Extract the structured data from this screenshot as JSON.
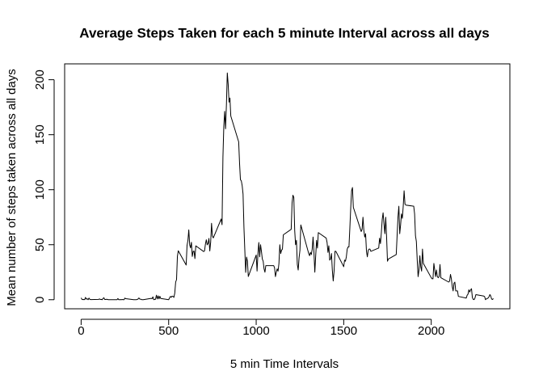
{
  "chart_data": {
    "type": "line",
    "title": "Average Steps Taken for each 5 minute Interval across all days",
    "x_label": "5 min Time Intervals",
    "y_label": "Mean number of steps taken across all days",
    "color": "#000000",
    "xlim": [
      -94.2,
      2449.2
    ],
    "ylim": [
      -8.25,
      214.42
    ],
    "xticks": [
      0,
      500,
      1000,
      1500,
      2000
    ],
    "yticks": [
      0,
      50,
      100,
      150,
      200
    ],
    "grid": false,
    "x": [
      0,
      5,
      10,
      15,
      20,
      25,
      30,
      35,
      40,
      45,
      50,
      55,
      100,
      105,
      110,
      115,
      120,
      125,
      130,
      135,
      140,
      145,
      150,
      155,
      200,
      205,
      210,
      215,
      220,
      225,
      230,
      235,
      240,
      245,
      250,
      255,
      300,
      305,
      310,
      315,
      320,
      325,
      330,
      335,
      340,
      345,
      350,
      355,
      400,
      405,
      410,
      415,
      420,
      425,
      430,
      435,
      440,
      445,
      450,
      455,
      500,
      505,
      510,
      515,
      520,
      525,
      530,
      535,
      540,
      545,
      550,
      555,
      600,
      605,
      610,
      615,
      620,
      625,
      630,
      635,
      640,
      645,
      650,
      655,
      700,
      705,
      710,
      715,
      720,
      725,
      730,
      735,
      740,
      745,
      750,
      755,
      800,
      805,
      810,
      815,
      820,
      825,
      830,
      835,
      840,
      845,
      850,
      855,
      900,
      905,
      910,
      915,
      920,
      925,
      930,
      935,
      940,
      945,
      950,
      955,
      1000,
      1005,
      1010,
      1015,
      1020,
      1025,
      1030,
      1035,
      1040,
      1045,
      1050,
      1055,
      1100,
      1105,
      1110,
      1115,
      1120,
      1125,
      1130,
      1135,
      1140,
      1145,
      1150,
      1155,
      1200,
      1205,
      1210,
      1215,
      1220,
      1225,
      1230,
      1235,
      1240,
      1245,
      1250,
      1255,
      1300,
      1305,
      1310,
      1315,
      1320,
      1325,
      1330,
      1335,
      1340,
      1345,
      1350,
      1355,
      1400,
      1405,
      1410,
      1415,
      1420,
      1425,
      1430,
      1435,
      1440,
      1445,
      1450,
      1455,
      1500,
      1505,
      1510,
      1515,
      1520,
      1525,
      1530,
      1535,
      1540,
      1545,
      1550,
      1555,
      1600,
      1605,
      1610,
      1615,
      1620,
      1625,
      1630,
      1635,
      1640,
      1645,
      1650,
      1655,
      1700,
      1705,
      1710,
      1715,
      1720,
      1725,
      1730,
      1735,
      1740,
      1745,
      1750,
      1755,
      1800,
      1805,
      1810,
      1815,
      1820,
      1825,
      1830,
      1835,
      1840,
      1845,
      1850,
      1855,
      1900,
      1905,
      1910,
      1915,
      1920,
      1925,
      1930,
      1935,
      1940,
      1945,
      1950,
      1955,
      2000,
      2005,
      2010,
      2015,
      2020,
      2025,
      2030,
      2035,
      2040,
      2045,
      2050,
      2055,
      2100,
      2105,
      2110,
      2115,
      2120,
      2125,
      2130,
      2135,
      2140,
      2145,
      2150,
      2155,
      2200,
      2205,
      2210,
      2215,
      2220,
      2225,
      2230,
      2235,
      2240,
      2245,
      2250,
      2255,
      2300,
      2305,
      2310,
      2315,
      2320,
      2325,
      2330,
      2335,
      2340,
      2345,
      2350,
      2355
    ],
    "values": [
      1.7,
      0.3,
      0.1,
      0.2,
      0.1,
      2.1,
      0.5,
      0.9,
      0,
      1.5,
      0.3,
      0.1,
      0.3,
      0.7,
      0.2,
      0.3,
      0,
      1.1,
      1.8,
      0.2,
      0.2,
      0.4,
      0.3,
      0,
      0,
      0,
      1.1,
      0,
      0,
      0.1,
      0,
      0.2,
      0,
      0,
      1.5,
      0.9,
      0,
      0,
      0,
      0,
      0.2,
      0.6,
      1.6,
      0.6,
      0.5,
      0.1,
      0,
      0,
      1.2,
      0.9,
      2.6,
      0,
      0.3,
      0.4,
      4.1,
      0.7,
      3.5,
      0.8,
      3.1,
      1.1,
      0,
      1.6,
      3,
      2.2,
      3.3,
      3,
      2.1,
      6.1,
      16,
      18.3,
      39.5,
      44.5,
      31.5,
      49.3,
      53.8,
      63.5,
      50,
      47.1,
      52.2,
      39.3,
      44,
      44.2,
      37.4,
      49,
      43.8,
      44.4,
      50.5,
      54.5,
      49.9,
      51,
      55.7,
      44.3,
      52.3,
      69.5,
      57.8,
      56.2,
      73.4,
      68.2,
      129.4,
      157.5,
      171.2,
      155.4,
      177.3,
      206.2,
      195.9,
      179.6,
      183.4,
      167,
      143.5,
      124,
      109.1,
      108.1,
      103.7,
      96,
      66.2,
      45.2,
      24.8,
      38.8,
      35,
      21.1,
      40.6,
      26,
      42,
      52,
      39,
      50,
      44,
      37,
      35,
      28,
      25,
      31,
      31,
      29,
      21,
      25,
      28,
      26,
      33,
      50,
      42,
      45,
      46,
      59,
      64,
      88,
      95,
      93,
      63,
      50,
      54,
      32,
      27,
      38,
      45,
      68,
      42,
      40,
      43,
      41,
      46,
      57,
      43,
      25,
      40,
      54,
      47,
      61,
      56,
      52,
      43,
      49,
      36,
      37,
      42,
      27,
      17,
      26,
      44,
      44,
      30,
      36,
      35,
      39,
      46,
      48,
      48,
      65,
      83,
      99,
      102,
      84,
      62,
      64,
      75,
      63,
      57,
      60,
      44,
      39,
      45,
      46,
      46,
      44,
      47,
      56,
      51,
      61,
      73,
      79,
      69,
      60,
      75,
      57,
      35,
      37,
      41,
      58,
      75,
      85,
      60,
      68,
      78,
      74,
      85,
      99,
      87,
      86,
      85,
      78,
      58,
      53,
      36,
      21,
      27,
      40,
      30,
      26,
      46,
      33,
      20,
      19,
      19,
      33,
      27,
      21,
      27,
      21,
      20,
      21,
      32,
      20,
      16,
      17,
      23,
      19,
      12,
      8,
      15,
      16,
      8,
      8,
      8,
      3,
      1.5,
      4,
      5,
      9,
      7,
      9,
      10,
      2,
      0.3,
      0.1,
      1.6,
      4.6,
      3.3,
      2.8,
      0,
      0.8,
      1,
      1.6,
      2.6,
      4.7,
      3.3,
      0.6,
      0.2,
      1.1
    ]
  }
}
